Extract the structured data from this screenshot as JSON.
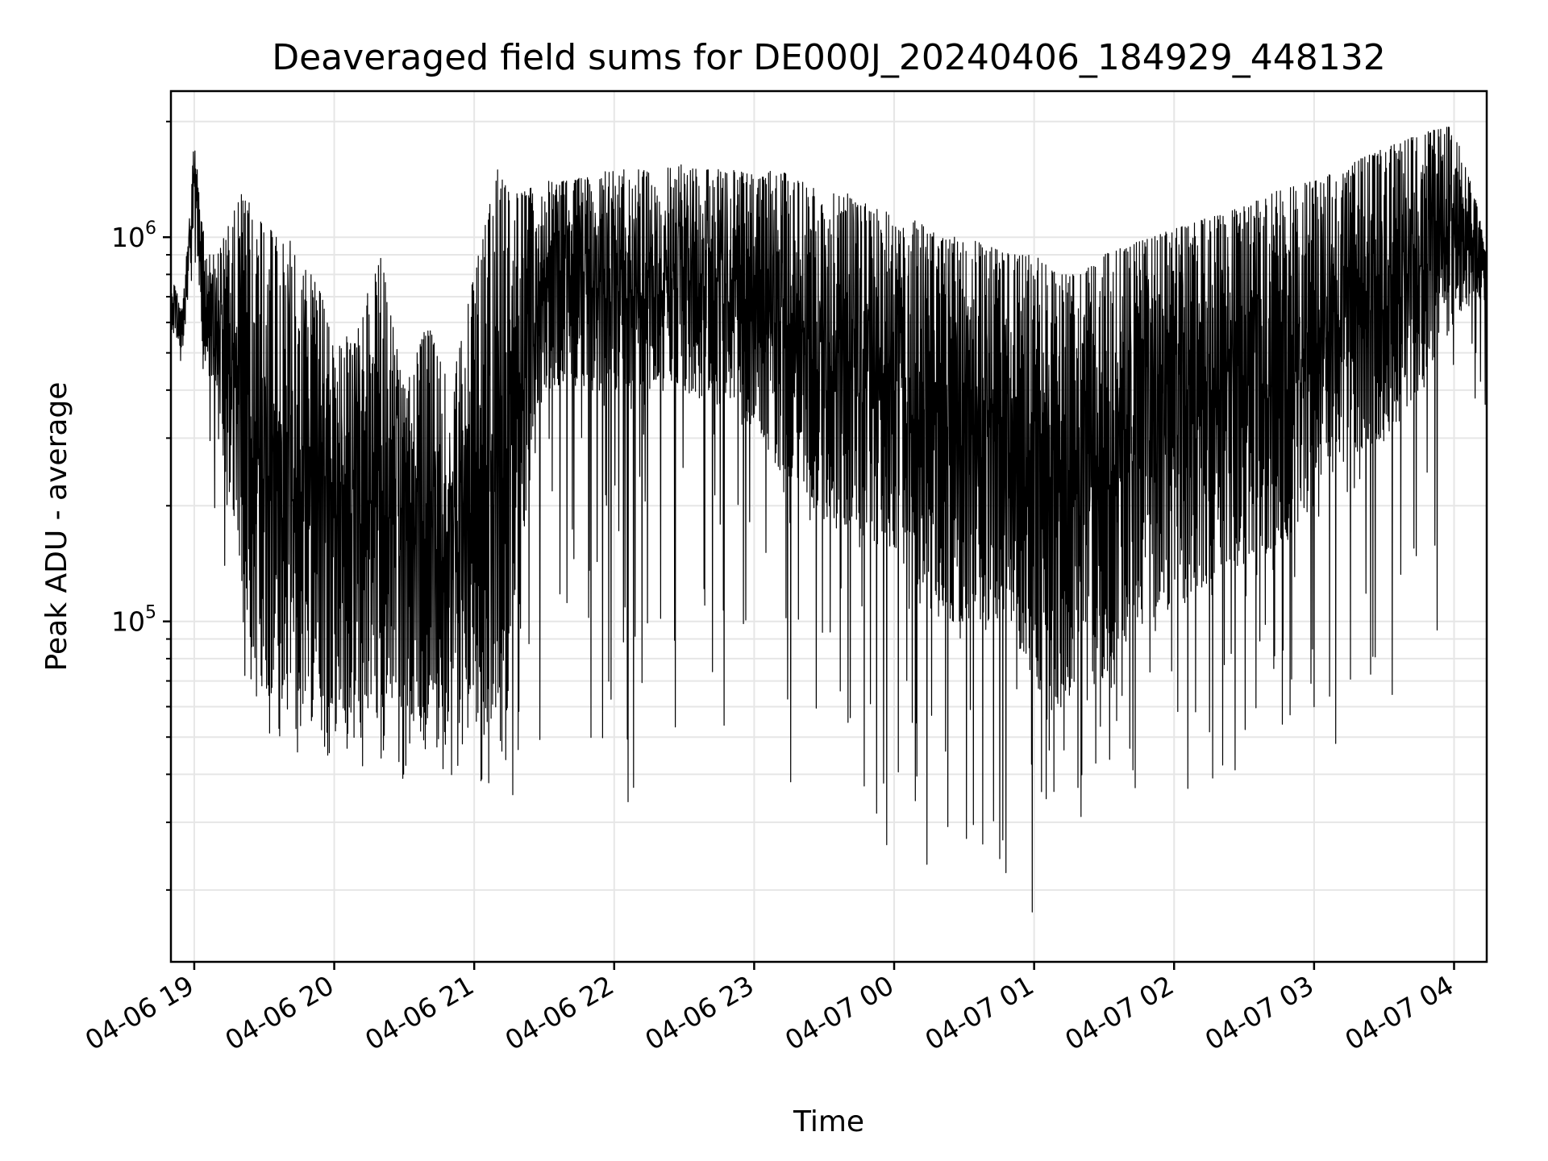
{
  "chart_data": {
    "type": "line",
    "title": "Deaveraged field sums for DE000J_20240406_184929_448132",
    "xlabel": "Time",
    "ylabel": "Peak ADU - average",
    "yscale": "log",
    "grid": true,
    "legend": "none",
    "line_color": "#000000",
    "xlim": [
      "2024-04-06 18:50",
      "2024-04-07 04:14"
    ],
    "ylim": [
      13000,
      2400000
    ],
    "x_ticks": [
      "04-06 19",
      "04-06 20",
      "04-06 21",
      "04-06 22",
      "04-06 23",
      "04-07 00",
      "04-07 01",
      "04-07 02",
      "04-07 03",
      "04-07 04"
    ],
    "y_ticks": [
      {
        "value": 100000,
        "base": "10",
        "exp": "5"
      },
      {
        "value": 1000000,
        "base": "10",
        "exp": "6"
      }
    ],
    "series": [
      {
        "x": [
          "2024-04-06 18:50",
          "2024-04-06 18:55",
          "2024-04-06 19:00",
          "2024-04-06 19:05",
          "2024-04-06 19:10",
          "2024-04-06 19:15",
          "2024-04-06 19:20",
          "2024-04-06 19:25",
          "2024-04-06 19:30",
          "2024-04-06 19:35",
          "2024-04-06 19:40",
          "2024-04-06 19:45",
          "2024-04-06 19:50",
          "2024-04-06 19:55",
          "2024-04-06 20:00",
          "2024-04-06 20:10",
          "2024-04-06 20:20",
          "2024-04-06 20:30",
          "2024-04-06 20:40",
          "2024-04-06 20:50",
          "2024-04-06 21:00",
          "2024-04-06 21:10",
          "2024-04-06 21:15",
          "2024-04-06 21:20",
          "2024-04-06 21:30",
          "2024-04-06 21:40",
          "2024-04-06 21:50",
          "2024-04-06 22:00",
          "2024-04-06 22:10",
          "2024-04-06 22:20",
          "2024-04-06 22:30",
          "2024-04-06 22:40",
          "2024-04-06 22:50",
          "2024-04-06 23:00",
          "2024-04-06 23:10",
          "2024-04-06 23:20",
          "2024-04-06 23:30",
          "2024-04-06 23:40",
          "2024-04-06 23:50",
          "2024-04-07 00:00",
          "2024-04-07 00:10",
          "2024-04-07 00:20",
          "2024-04-07 00:30",
          "2024-04-07 00:40",
          "2024-04-07 00:50",
          "2024-04-07 01:00",
          "2024-04-07 01:10",
          "2024-04-07 01:20",
          "2024-04-07 01:30",
          "2024-04-07 01:40",
          "2024-04-07 01:50",
          "2024-04-07 02:00",
          "2024-04-07 02:10",
          "2024-04-07 02:20",
          "2024-04-07 02:30",
          "2024-04-07 02:40",
          "2024-04-07 02:50",
          "2024-04-07 03:00",
          "2024-04-07 03:10",
          "2024-04-07 03:20",
          "2024-04-07 03:30",
          "2024-04-07 03:40",
          "2024-04-07 03:50",
          "2024-04-07 04:00",
          "2024-04-07 04:10",
          "2024-04-07 04:14"
        ],
        "low": [
          550000,
          500000,
          1050000,
          450000,
          300000,
          220000,
          150000,
          80000,
          65000,
          62000,
          58000,
          60000,
          70000,
          62000,
          58000,
          58000,
          60000,
          58000,
          55000,
          55000,
          52000,
          55000,
          60000,
          150000,
          400000,
          400000,
          400000,
          400000,
          400000,
          400000,
          380000,
          370000,
          360000,
          320000,
          250000,
          220000,
          180000,
          170000,
          160000,
          150000,
          120000,
          100000,
          100000,
          100000,
          95000,
          70000,
          55000,
          60000,
          70000,
          90000,
          100000,
          110000,
          120000,
          130000,
          140000,
          150000,
          170000,
          200000,
          250000,
          280000,
          300000,
          350000,
          450000,
          600000,
          700000,
          650000
        ],
        "high": [
          800000,
          650000,
          1800000,
          900000,
          900000,
          1100000,
          1300000,
          1200000,
          1100000,
          1000000,
          1000000,
          900000,
          800000,
          700000,
          500000,
          600000,
          900000,
          400000,
          600000,
          400000,
          800000,
          1500000,
          1300000,
          1300000,
          1400000,
          1400000,
          1450000,
          1500000,
          1500000,
          1500000,
          1550000,
          1500000,
          1500000,
          1450000,
          1500000,
          1400000,
          1300000,
          1300000,
          1200000,
          1150000,
          1100000,
          1000000,
          1000000,
          950000,
          900000,
          900000,
          800000,
          800000,
          900000,
          950000,
          1000000,
          1050000,
          1100000,
          1150000,
          1200000,
          1300000,
          1350000,
          1400000,
          1500000,
          1600000,
          1700000,
          1800000,
          1900000,
          1950000,
          1200000,
          900000
        ],
        "min": [
          500000,
          400000,
          900000,
          350000,
          100000,
          110000,
          70000,
          55000,
          50000,
          40000,
          38000,
          42000,
          45000,
          40000,
          48000,
          42000,
          40000,
          38000,
          40000,
          38000,
          38000,
          35000,
          25000,
          32000,
          40000,
          43000,
          45000,
          38000,
          30000,
          42000,
          45000,
          40000,
          42000,
          38000,
          40000,
          35000,
          32000,
          20000,
          22000,
          25000,
          18000,
          20000,
          22000,
          19000,
          18000,
          17000,
          25000,
          28000,
          30000,
          30000,
          28000,
          30000,
          30000,
          35000,
          38000,
          40000,
          45000,
          45000,
          48000,
          50000,
          60000,
          70000,
          90000,
          100000,
          200000,
          300000
        ]
      }
    ]
  }
}
